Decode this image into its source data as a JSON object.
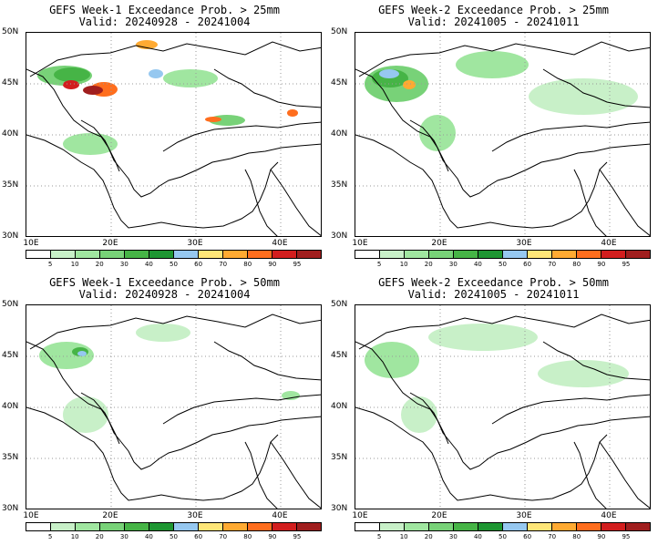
{
  "panels": [
    {
      "title": "GEFS Week-1 Exceedance Prob. > 25mm",
      "valid": "Valid: 20240928 - 20241004",
      "intensity": "w1_25"
    },
    {
      "title": "GEFS Week-2 Exceedance Prob. > 25mm",
      "valid": "Valid: 20241005 - 20241011",
      "intensity": "w2_25"
    },
    {
      "title": "GEFS Week-1 Exceedance Prob. > 50mm",
      "valid": "Valid: 20240928 - 20241004",
      "intensity": "w1_50"
    },
    {
      "title": "GEFS Week-2 Exceedance Prob. > 50mm",
      "valid": "Valid: 20241005 - 20241011",
      "intensity": "w2_50"
    }
  ],
  "lat_labels": [
    "50N",
    "45N",
    "40N",
    "35N",
    "30N"
  ],
  "lon_labels": [
    "10E",
    "20E",
    "30E",
    "40E"
  ],
  "colorbar": {
    "ticks": [
      "5",
      "10",
      "20",
      "30",
      "40",
      "50",
      "60",
      "70",
      "80",
      "90",
      "95"
    ],
    "colors": [
      "#ffffff",
      "#c8f0c8",
      "#a0e6a0",
      "#78d278",
      "#46b446",
      "#1e9632",
      "#96c8f0",
      "#ffe678",
      "#ffaa32",
      "#ff6e1e",
      "#d21e1e",
      "#a01e1e"
    ]
  }
}
